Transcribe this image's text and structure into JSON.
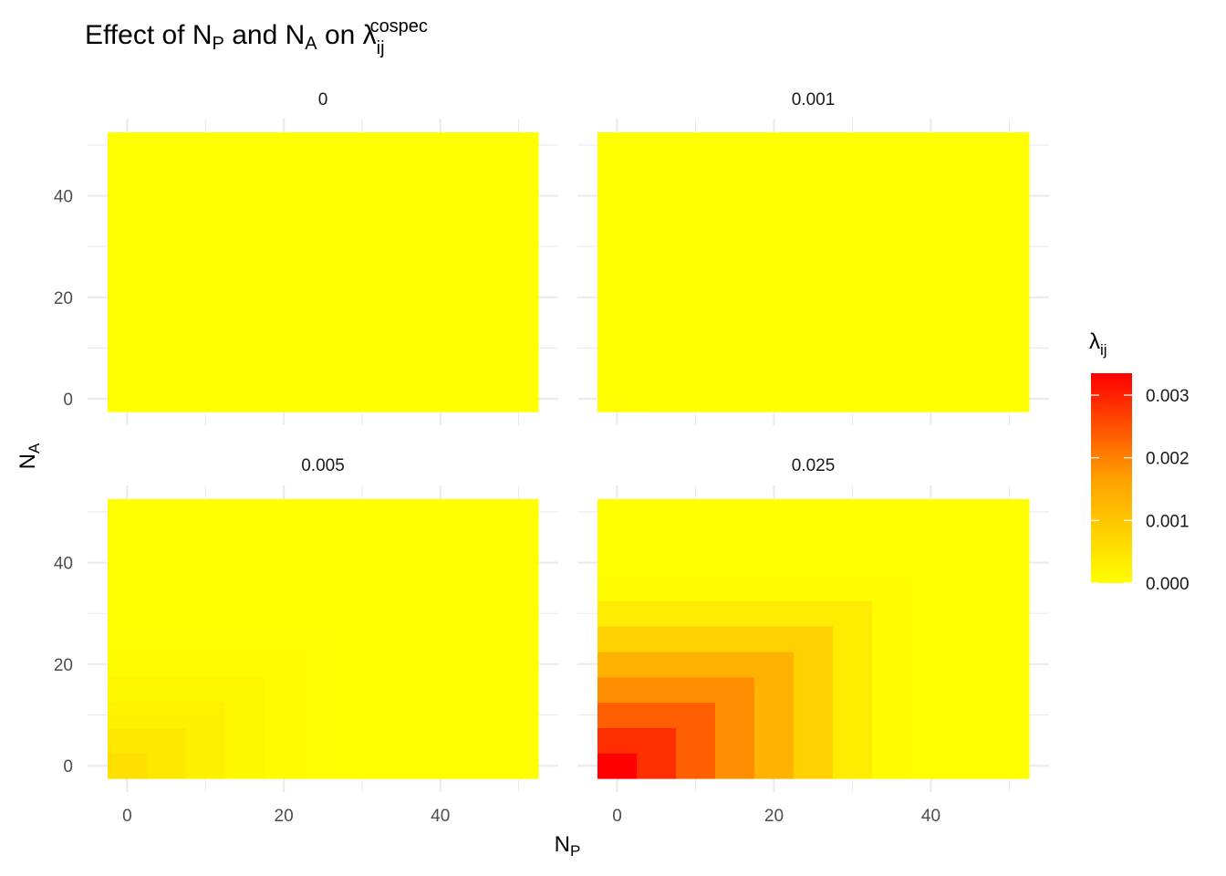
{
  "title": {
    "prefix": "Effect of ",
    "n": "N",
    "p_sub": "P",
    "and": " and ",
    "a_sub": "A",
    "on": " on ",
    "lambda": "λ",
    "ij_sub": "ij",
    "sup": "cospec"
  },
  "axes": {
    "x": {
      "base": "N",
      "sub": "P"
    },
    "y": {
      "base": "N",
      "sub": "A"
    }
  },
  "legend": {
    "symbol": "λ",
    "sub": "ij",
    "ticks": [
      "0.003",
      "0.002",
      "0.001",
      "0.000"
    ],
    "low_color": "#FFFF00",
    "high_color": "#FF0000",
    "min": 0,
    "max": 0.00335
  },
  "colors": {
    "panel_grid": "#EBEBEB",
    "text": "#1a1a1a",
    "tick_text": "#4d4d4d"
  },
  "chart_data": {
    "type": "heatmap",
    "facet_by": "",
    "x_breaks": [
      0,
      20,
      40
    ],
    "y_breaks": [
      0,
      20,
      40
    ],
    "xlim": [
      -2.5,
      52.5
    ],
    "ylim": [
      -2.5,
      52.5
    ],
    "x_grid": [
      0,
      5,
      10,
      15,
      20,
      25,
      30,
      35,
      40,
      45,
      50
    ],
    "y_grid": [
      0,
      5,
      10,
      15,
      20,
      25,
      30,
      35,
      40,
      45,
      50
    ],
    "panels": [
      {
        "label": "0",
        "values": [
          0,
          0,
          0,
          0,
          0,
          0,
          0,
          0,
          0,
          0,
          0
        ]
      },
      {
        "label": "0.001",
        "values": [
          3e-05,
          5e-06,
          0,
          0,
          0,
          0,
          0,
          0,
          0,
          0,
          0
        ]
      },
      {
        "label": "0.005",
        "values": [
          0.00042,
          0.0003,
          0.00019,
          0.00011,
          5e-05,
          2e-05,
          0,
          0,
          0,
          0,
          0
        ]
      },
      {
        "label": "0.025",
        "values": [
          0.00335,
          0.00275,
          0.0021,
          0.0015,
          0.001,
          0.0006,
          0.00025,
          5e-05,
          0,
          0,
          0
        ]
      }
    ]
  }
}
